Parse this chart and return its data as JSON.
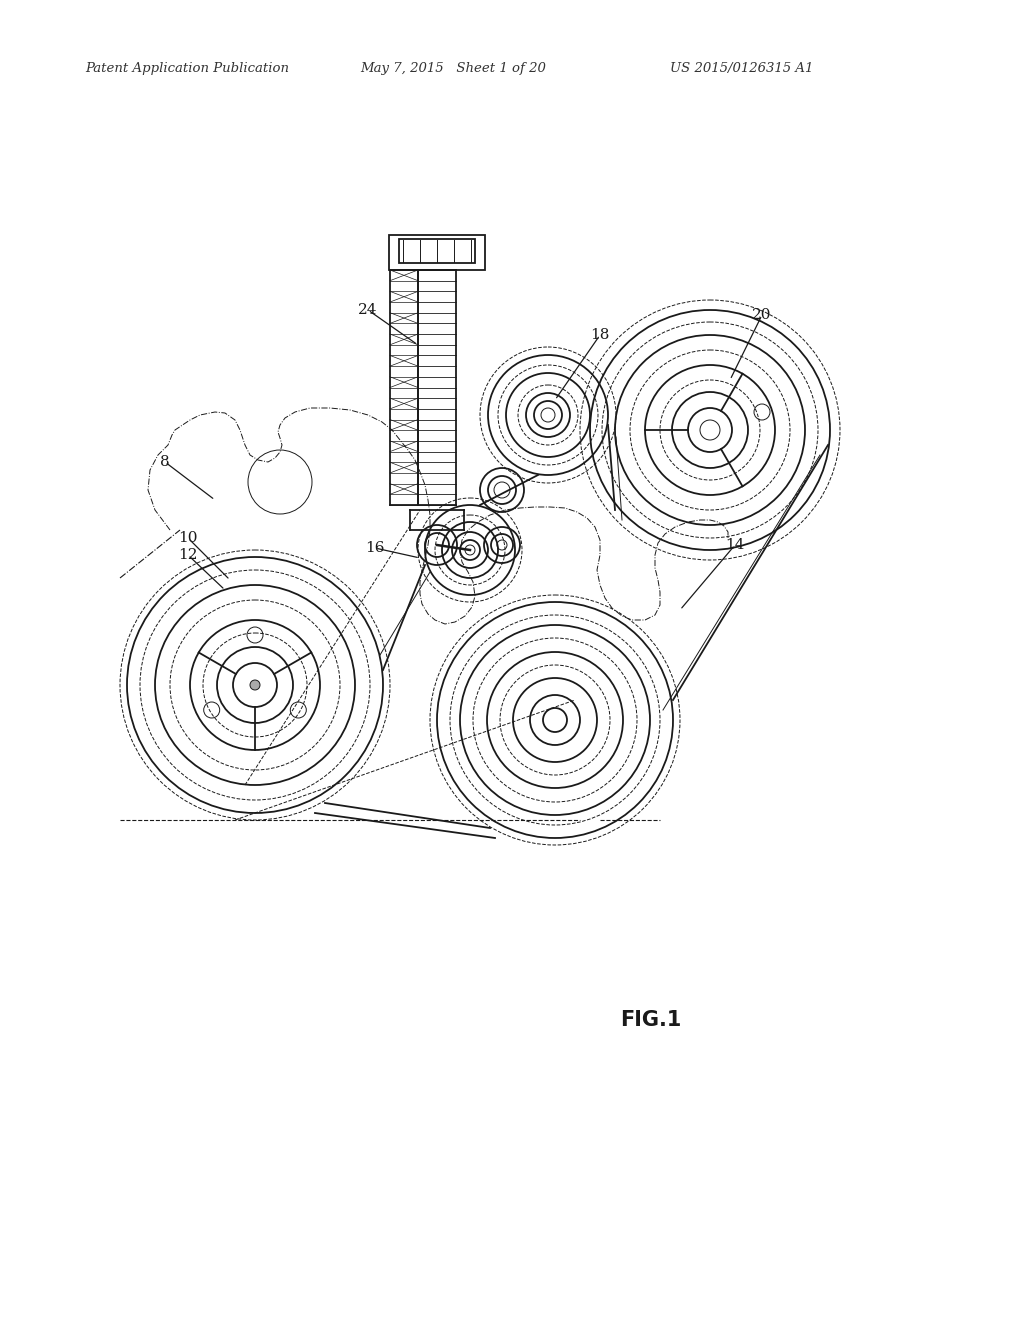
{
  "title_left": "Patent Application Publication",
  "title_mid": "May 7, 2015   Sheet 1 of 20",
  "title_right": "US 2015/0126315 A1",
  "fig_label": "FIG.1",
  "background_color": "#ffffff",
  "line_color": "#1a1a1a",
  "header_fontsize": 9.5,
  "fig_label_fontsize": 15,
  "lw_main": 1.3,
  "lw_thin": 0.7,
  "lw_dash": 0.8
}
